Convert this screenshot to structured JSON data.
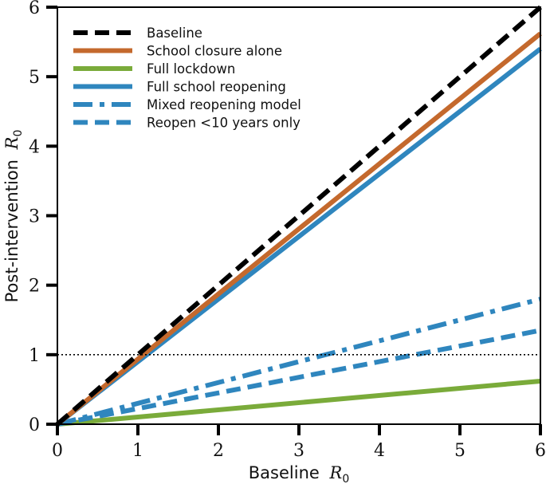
{
  "chart_data": {
    "type": "line",
    "title": "",
    "xlabel": "Baseline R0",
    "ylabel": "Post-intervention R0",
    "xlabel_text": "Baseline",
    "ylabel_text": "Post-intervention",
    "axis_symbol": "R",
    "axis_subscript": "0",
    "xlim": [
      0,
      6
    ],
    "ylim": [
      0,
      6
    ],
    "xticks": [
      0,
      1,
      2,
      3,
      4,
      5,
      6
    ],
    "yticks": [
      0,
      1,
      2,
      3,
      4,
      5,
      6
    ],
    "xtick_labels": [
      "0",
      "1",
      "2",
      "3",
      "4",
      "5",
      "6"
    ],
    "ytick_labels": [
      "0",
      "1",
      "2",
      "3",
      "4",
      "5",
      "6"
    ],
    "grid": false,
    "legend_position": "top-left",
    "reference_line": {
      "y": 1,
      "style": "dotted",
      "color": "#000000"
    },
    "series": [
      {
        "name": "Baseline",
        "color": "#000000",
        "style": "dashed",
        "x": [
          0,
          6
        ],
        "y": [
          0,
          6.0
        ]
      },
      {
        "name": "School closure alone",
        "color": "#c4692d",
        "style": "solid",
        "x": [
          0,
          6
        ],
        "y": [
          0,
          5.62
        ]
      },
      {
        "name": "Full lockdown",
        "color": "#7aab3a",
        "style": "solid",
        "x": [
          0,
          6
        ],
        "y": [
          0,
          0.62
        ]
      },
      {
        "name": "Full school reopening",
        "color": "#2f86be",
        "style": "solid",
        "x": [
          0,
          6
        ],
        "y": [
          0,
          5.4
        ]
      },
      {
        "name": "Mixed reopening model",
        "color": "#2f86be",
        "style": "dashdot",
        "x": [
          0,
          6
        ],
        "y": [
          0,
          1.8
        ]
      },
      {
        "name": "Reopen <10 years only",
        "color": "#2f86be",
        "style": "dashed",
        "x": [
          0,
          6
        ],
        "y": [
          0,
          1.35
        ]
      }
    ]
  }
}
